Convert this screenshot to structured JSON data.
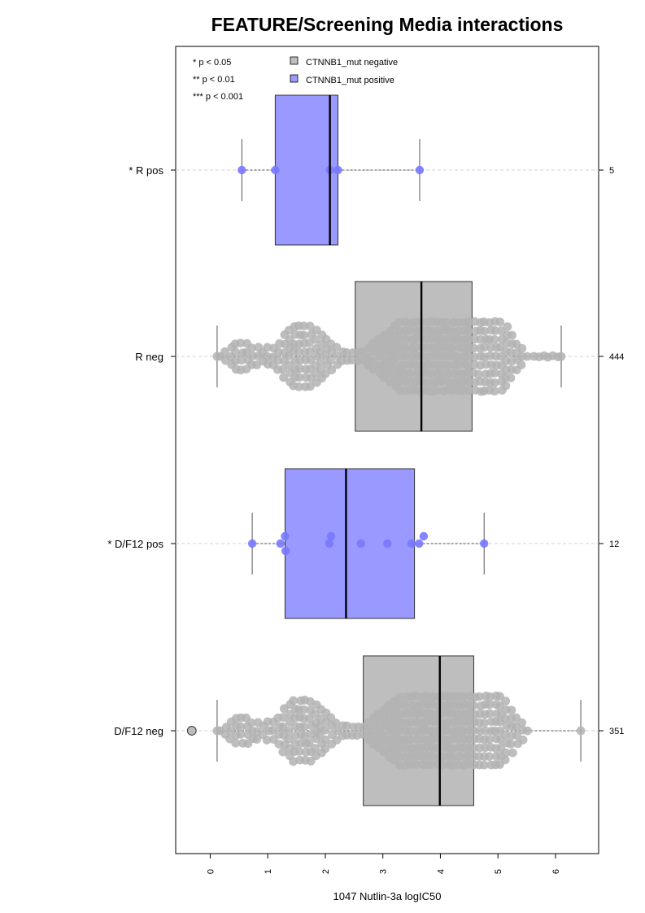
{
  "chart_data": {
    "type": "box-swarm",
    "title": "FEATURE/Screening Media interactions",
    "xlabel": "1047 Nutlin-3a logIC50",
    "ylabel": "",
    "xlim": [
      -0.6,
      6.75
    ],
    "xticks": [
      "0",
      "1",
      "2",
      "3",
      "4",
      "5",
      "6"
    ],
    "grid": false,
    "legend_position": "top",
    "significance_legend": [
      "* p < 0.05",
      "** p < 0.01",
      "*** p < 0.001"
    ],
    "legend": [
      {
        "label": "CTNNB1_mut negative",
        "color": "#bebebe"
      },
      {
        "label": "CTNNB1_mut positive",
        "color": "#9999ff"
      }
    ],
    "groups": [
      {
        "label": "* R pos",
        "count": "5",
        "mutant": "positive",
        "whisker_low": 0.55,
        "q1": 1.13,
        "median": 2.08,
        "q3": 2.22,
        "whisker_high": 3.64,
        "points": [
          0.55,
          1.13,
          2.08,
          2.22,
          3.64
        ],
        "outliers": []
      },
      {
        "label": "R neg",
        "count": "444",
        "mutant": "negative",
        "whisker_low": 0.12,
        "q1": 2.52,
        "median": 3.67,
        "q3": 4.55,
        "whisker_high": 6.1,
        "points": [],
        "outliers": []
      },
      {
        "label": "* D/F12 pos",
        "count": "12",
        "mutant": "positive",
        "whisker_low": 0.73,
        "q1": 1.3,
        "median": 2.36,
        "q3": 3.55,
        "whisker_high": 4.76,
        "points": [
          0.73,
          1.22,
          1.3,
          1.31,
          2.07,
          2.1,
          2.62,
          3.08,
          3.5,
          3.63,
          3.71,
          4.76
        ],
        "outliers": []
      },
      {
        "label": "D/F12 neg",
        "count": "351",
        "mutant": "negative",
        "whisker_low": 0.12,
        "q1": 2.66,
        "median": 3.99,
        "q3": 4.58,
        "whisker_high": 6.44,
        "points": [],
        "outliers": [
          -0.32
        ]
      }
    ]
  },
  "colors": {
    "negative_fill": "#bebebe",
    "positive_fill": "#9999ff",
    "negative_point": "#b3b3b3",
    "positive_point": "#7878ff"
  }
}
